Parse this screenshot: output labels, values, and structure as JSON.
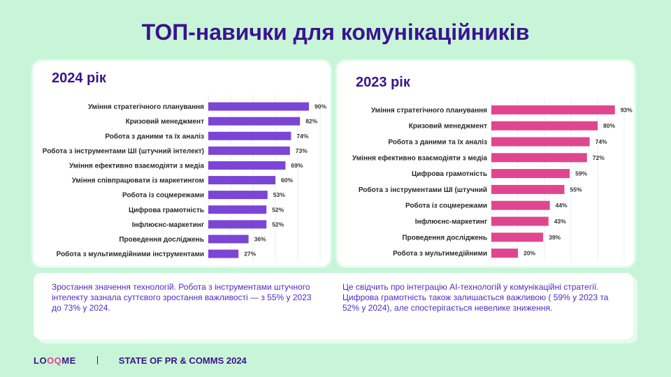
{
  "page": {
    "title": "ТОП-навички для комунікаційників"
  },
  "chart_data": [
    {
      "type": "bar",
      "orientation": "horizontal",
      "title": "2024 рік",
      "color": "#7b45d6",
      "xlim": [
        0,
        100
      ],
      "categories": [
        "Уміння стратегічного планування",
        "Кризовий менеджмент",
        "Робота з даними та їх аналіз",
        "Робота з інструментами ШІ (штучний інтелект)",
        "Уміння ефективно взаємодіяти з медіа",
        "Уміння співпрацювати із маркетингом",
        "Робота із соцмережами",
        "Цифрова грамотність",
        "Інфлюєнс-маркетинг",
        "Проведення досліджень",
        "Робота з мультимедійними інструментами"
      ],
      "values": [
        90,
        82,
        74,
        73,
        69,
        60,
        53,
        52,
        52,
        36,
        27
      ],
      "value_labels": [
        "90%",
        "82%",
        "74%",
        "73%",
        "69%",
        "60%",
        "53%",
        "52%",
        "52%",
        "36%",
        "27%"
      ]
    },
    {
      "type": "bar",
      "orientation": "horizontal",
      "title": "2023 рік",
      "color": "#e0468f",
      "xlim": [
        0,
        100
      ],
      "categories": [
        "Уміння стратегічного планування",
        "Кризовий менеджмент",
        "Робота з даними та їх аналіз",
        "Уміння ефективно взаємодіяти з медіа",
        "Цифрова грамотність",
        "Робота з інструментами ШІ (штучний",
        "Робота із соцмережами",
        "Інфлюєнс-маркетинг",
        "Проведення досліджень",
        "Робота з мультимедійними"
      ],
      "values": [
        93,
        80,
        74,
        72,
        59,
        55,
        44,
        43,
        39,
        20
      ],
      "value_labels": [
        "93%",
        "80%",
        "74%",
        "72%",
        "59%",
        "55%",
        "44%",
        "43%",
        "39%",
        "20%"
      ]
    }
  ],
  "notes": {
    "left": "Зростання значення технологій. Робота з інструментами штучного інтелекту зазнала суттєвого зростання важливості — з 55% у 2023 до 73% у 2024.",
    "right": "Це свідчить про інтеграцію AI-технологій у комунікаційні стратегії. Цифрова грамотність також залишається важливою ( 59% у 2023 та 52% у 2024), але спостерігається невелике зниження."
  },
  "footer": {
    "logo_pre": "LO",
    "logo_mid": "OQ",
    "logo_post": "ME",
    "report": "STATE OF PR & COMMS 2024"
  }
}
